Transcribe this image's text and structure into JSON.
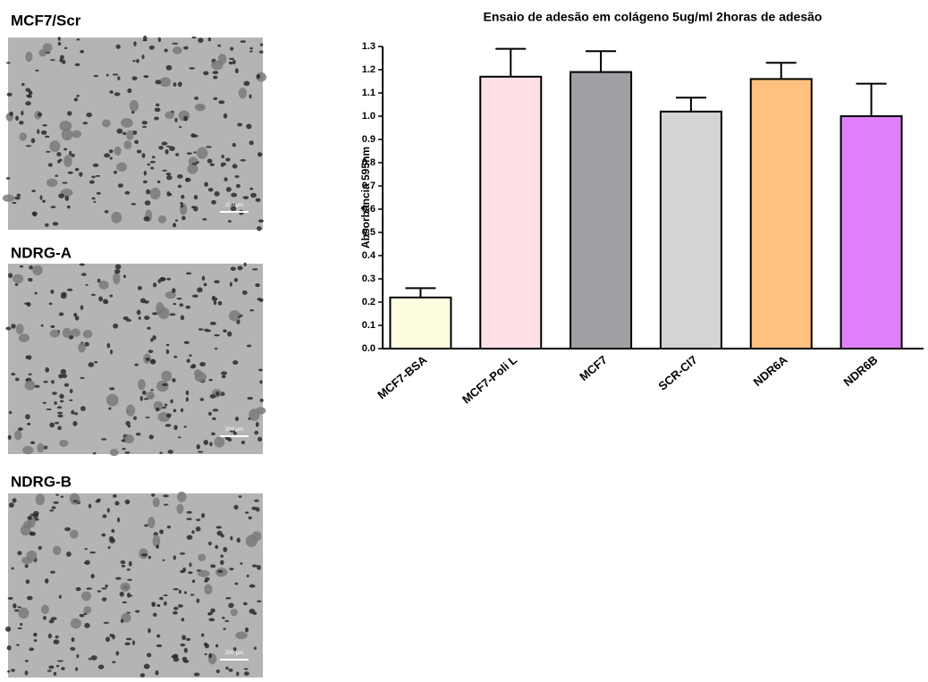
{
  "panels": [
    {
      "label": "MCF7/Scr"
    },
    {
      "label": "NDRG-A"
    },
    {
      "label": "NDRG-B"
    }
  ],
  "scale_bar": "200 µm",
  "chart_data": {
    "type": "bar",
    "title": "Ensaio de adesão em colágeno 5ug/ml 2horas de adesão",
    "y_label": "Absorbância 595nm",
    "categories": [
      "MCF7-BSA",
      "MCF7-Poli L",
      "MCF7",
      "SCR-Cl7",
      "NDR6A",
      "NDR6B"
    ],
    "values": [
      0.22,
      1.17,
      1.19,
      1.02,
      1.16,
      1.0
    ],
    "errors": [
      0.04,
      0.12,
      0.09,
      0.06,
      0.07,
      0.14
    ],
    "colors": [
      "#fffde0",
      "#ffe0e6",
      "#a0a0a4",
      "#d4d4d4",
      "#ffc080",
      "#e080f8"
    ],
    "ylim": [
      0,
      1.3
    ],
    "yticks": [
      {
        "value": 0,
        "label": "0.0"
      },
      0.1,
      0.2,
      0.3,
      0.4,
      0.5,
      0.6,
      0.7,
      0.8,
      0.9,
      {
        "value": 1,
        "label": "1.0"
      },
      1.1,
      1.2,
      1.3
    ],
    "grid": false
  }
}
